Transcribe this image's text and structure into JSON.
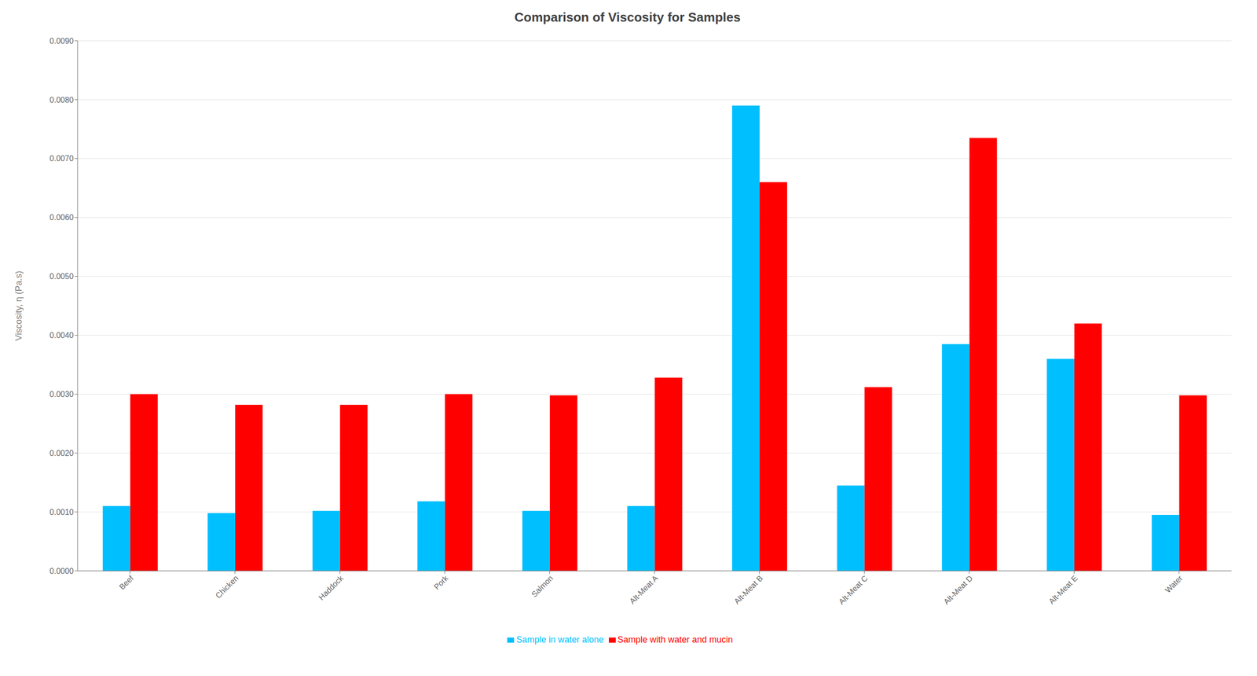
{
  "chart_data": {
    "type": "bar",
    "title": "Comparison of Viscosity for Samples",
    "ylabel": "Viscosity, η (Pa.s)",
    "categories": [
      "Beef",
      "Chicken",
      "Haddock",
      "Pork",
      "Salmon",
      "Alt-Meat A",
      "Alt-Meat B",
      "Alt-Meat C",
      "Alt-Meat D",
      "Alt-Meat E",
      "Water"
    ],
    "series": [
      {
        "name": "Sample in water alone",
        "color": "#00BFFF",
        "values": [
          0.0011,
          0.00098,
          0.00102,
          0.00118,
          0.00102,
          0.0011,
          0.0079,
          0.00145,
          0.00385,
          0.0036,
          0.00095
        ]
      },
      {
        "name": "Sample with water and mucin",
        "color": "#FF0000",
        "values": [
          0.003,
          0.00282,
          0.00282,
          0.003,
          0.00298,
          0.00328,
          0.0066,
          0.00312,
          0.00735,
          0.0042,
          0.00298
        ]
      }
    ],
    "ylim": [
      0,
      0.009
    ],
    "yticks": [
      {
        "value": 0,
        "label": "0.0000"
      },
      {
        "value": 0.001,
        "label": "0.0010"
      },
      {
        "value": 0.002,
        "label": "0.0020"
      },
      {
        "value": 0.003,
        "label": "0.0030"
      },
      {
        "value": 0.004,
        "label": "0.0040"
      },
      {
        "value": 0.005,
        "label": "0.0050"
      },
      {
        "value": 0.006,
        "label": "0.0060"
      },
      {
        "value": 0.007,
        "label": "0.0070"
      },
      {
        "value": 0.008,
        "label": "0.0080"
      },
      {
        "value": 0.009,
        "label": "0.0090"
      }
    ],
    "grid": true,
    "legend": "bottom"
  }
}
